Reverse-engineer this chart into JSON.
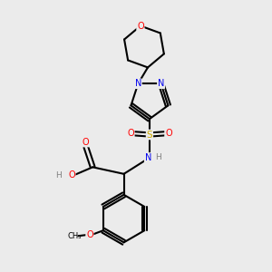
{
  "bg_color": "#ebebeb",
  "atom_colors": {
    "C": "#000000",
    "N": "#0000ee",
    "O": "#ff0000",
    "S": "#ccaa00",
    "H": "#808080"
  },
  "bond_color": "#000000",
  "figsize": [
    3.0,
    3.0
  ],
  "dpi": 100
}
